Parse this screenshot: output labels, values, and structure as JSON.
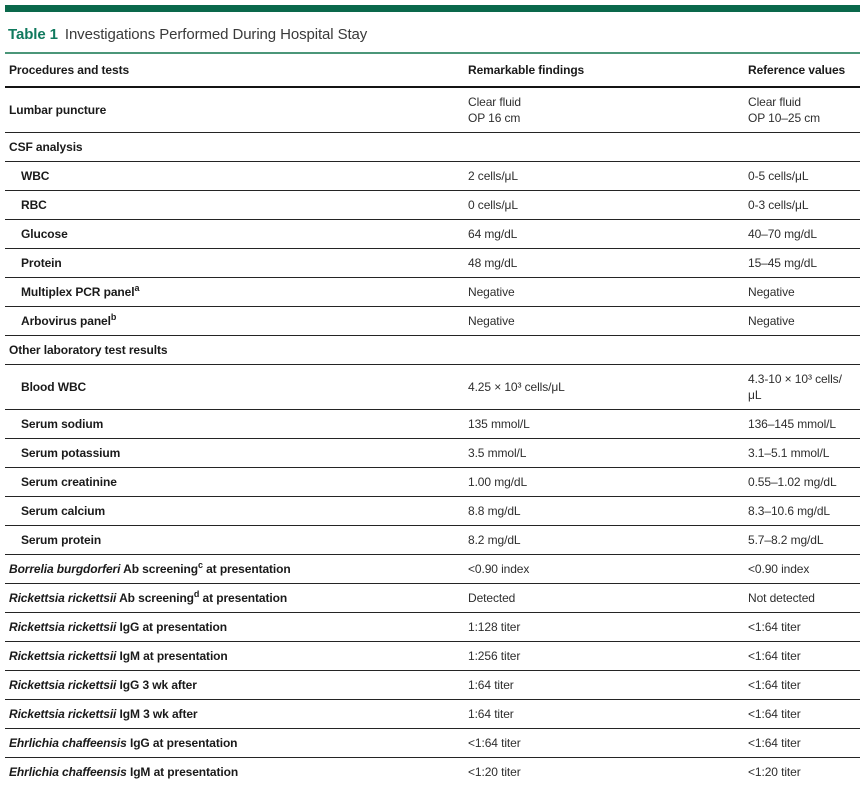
{
  "colors": {
    "top_bar_green": "#0a684b",
    "table_label_green": "#107a5e",
    "thin_rule_green": "#4b9679"
  },
  "table": {
    "label": "Table 1",
    "title": "Investigations Performed During Hospital Stay",
    "columns": [
      "Procedures and tests",
      "Remarkable findings",
      "Reference values"
    ],
    "rows": [
      {
        "type": "data",
        "indent": false,
        "label": [
          {
            "t": "Lumbar puncture"
          }
        ],
        "finding": [
          "Clear fluid",
          "OP 16 cm"
        ],
        "reference": [
          "Clear fluid",
          "OP 10–25 cm"
        ]
      },
      {
        "type": "section",
        "label": [
          {
            "t": "CSF analysis"
          }
        ]
      },
      {
        "type": "data",
        "indent": true,
        "label": [
          {
            "t": "WBC"
          }
        ],
        "finding": [
          "2 cells/μL"
        ],
        "reference": [
          "0-5 cells/μL"
        ]
      },
      {
        "type": "data",
        "indent": true,
        "label": [
          {
            "t": "RBC"
          }
        ],
        "finding": [
          "0 cells/μL"
        ],
        "reference": [
          "0-3 cells/μL"
        ]
      },
      {
        "type": "data",
        "indent": true,
        "label": [
          {
            "t": "Glucose"
          }
        ],
        "finding": [
          "64 mg/dL"
        ],
        "reference": [
          "40–70 mg/dL"
        ]
      },
      {
        "type": "data",
        "indent": true,
        "label": [
          {
            "t": "Protein"
          }
        ],
        "finding": [
          "48 mg/dL"
        ],
        "reference": [
          "15–45 mg/dL"
        ]
      },
      {
        "type": "data",
        "indent": true,
        "label": [
          {
            "t": "Multiplex PCR panel"
          },
          {
            "t": "a",
            "s": "sup"
          }
        ],
        "finding": [
          "Negative"
        ],
        "reference": [
          "Negative"
        ]
      },
      {
        "type": "data",
        "indent": true,
        "label": [
          {
            "t": "Arbovirus panel"
          },
          {
            "t": "b",
            "s": "sup"
          }
        ],
        "finding": [
          "Negative"
        ],
        "reference": [
          "Negative"
        ]
      },
      {
        "type": "section",
        "label": [
          {
            "t": "Other laboratory test results"
          }
        ]
      },
      {
        "type": "data",
        "indent": true,
        "label": [
          {
            "t": "Blood WBC"
          }
        ],
        "finding": [
          "4.25 × 10³ cells/μL"
        ],
        "reference": [
          "4.3-10 × 10³ cells/μL"
        ]
      },
      {
        "type": "data",
        "indent": true,
        "label": [
          {
            "t": "Serum sodium"
          }
        ],
        "finding": [
          "135 mmol/L"
        ],
        "reference": [
          "136–145 mmol/L"
        ]
      },
      {
        "type": "data",
        "indent": true,
        "label": [
          {
            "t": "Serum potassium"
          }
        ],
        "finding": [
          "3.5 mmol/L"
        ],
        "reference": [
          "3.1–5.1 mmol/L"
        ]
      },
      {
        "type": "data",
        "indent": true,
        "label": [
          {
            "t": "Serum creatinine"
          }
        ],
        "finding": [
          "1.00 mg/dL"
        ],
        "reference": [
          "0.55–1.02 mg/dL"
        ]
      },
      {
        "type": "data",
        "indent": true,
        "label": [
          {
            "t": "Serum calcium"
          }
        ],
        "finding": [
          "8.8 mg/dL"
        ],
        "reference": [
          "8.3–10.6 mg/dL"
        ]
      },
      {
        "type": "data",
        "indent": true,
        "label": [
          {
            "t": "Serum protein"
          }
        ],
        "finding": [
          "8.2 mg/dL"
        ],
        "reference": [
          "5.7–8.2 mg/dL"
        ]
      },
      {
        "type": "data",
        "indent": false,
        "label": [
          {
            "t": "Borrelia burgdorferi",
            "s": "i"
          },
          {
            "t": " Ab screening"
          },
          {
            "t": "c",
            "s": "sup"
          },
          {
            "t": " at presentation"
          }
        ],
        "finding": [
          "<0.90 index"
        ],
        "reference": [
          "<0.90 index"
        ]
      },
      {
        "type": "data",
        "indent": false,
        "label": [
          {
            "t": "Rickettsia rickettsii",
            "s": "i"
          },
          {
            "t": " Ab screening"
          },
          {
            "t": "d",
            "s": "sup"
          },
          {
            "t": " at presentation"
          }
        ],
        "finding": [
          "Detected"
        ],
        "reference": [
          "Not detected"
        ]
      },
      {
        "type": "data",
        "indent": false,
        "label": [
          {
            "t": "Rickettsia rickettsii",
            "s": "i"
          },
          {
            "t": " IgG at presentation"
          }
        ],
        "finding": [
          "1:128 titer"
        ],
        "reference": [
          "<1:64 titer"
        ]
      },
      {
        "type": "data",
        "indent": false,
        "label": [
          {
            "t": "Rickettsia rickettsii",
            "s": "i"
          },
          {
            "t": " IgM at presentation"
          }
        ],
        "finding": [
          "1:256 titer"
        ],
        "reference": [
          "<1:64 titer"
        ]
      },
      {
        "type": "data",
        "indent": false,
        "label": [
          {
            "t": "Rickettsia rickettsii",
            "s": "i"
          },
          {
            "t": " IgG 3 wk after"
          }
        ],
        "finding": [
          "1:64 titer"
        ],
        "reference": [
          "<1:64 titer"
        ]
      },
      {
        "type": "data",
        "indent": false,
        "label": [
          {
            "t": "Rickettsia rickettsii",
            "s": "i"
          },
          {
            "t": " IgM 3 wk after"
          }
        ],
        "finding": [
          "1:64 titer"
        ],
        "reference": [
          "<1:64 titer"
        ]
      },
      {
        "type": "data",
        "indent": false,
        "label": [
          {
            "t": "Ehrlichia chaffeensis",
            "s": "i"
          },
          {
            "t": " IgG at presentation"
          }
        ],
        "finding": [
          "<1:64 titer"
        ],
        "reference": [
          "<1:64 titer"
        ]
      },
      {
        "type": "data",
        "indent": false,
        "label": [
          {
            "t": "Ehrlichia chaffeensis",
            "s": "i"
          },
          {
            "t": " IgM at presentation"
          }
        ],
        "finding": [
          "<1:20 titer"
        ],
        "reference": [
          "<1:20 titer"
        ]
      }
    ]
  }
}
